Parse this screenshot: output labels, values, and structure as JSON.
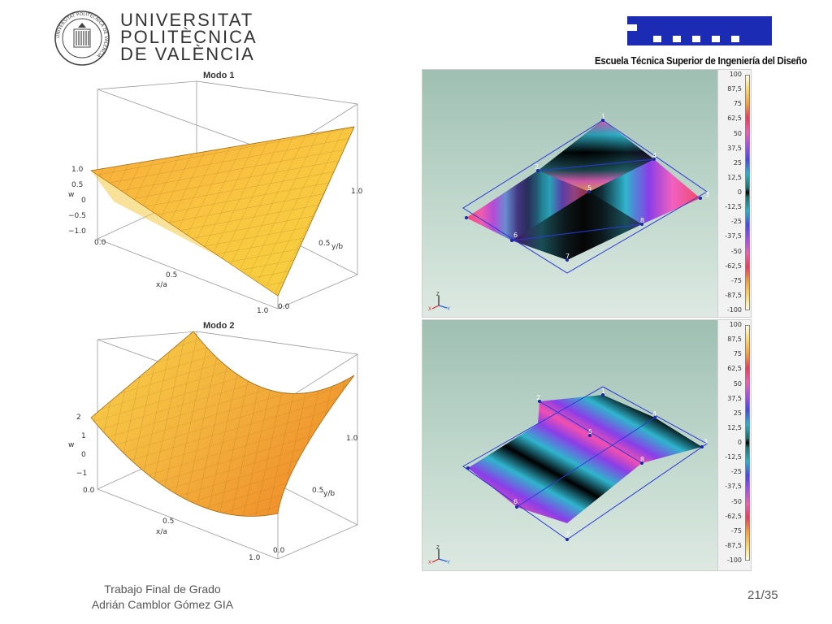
{
  "header": {
    "university_lines": [
      "UNIVERSITAT",
      "POLITÈCNICA",
      "DE VALÈNCIA"
    ],
    "seal_text": "UNIVERSITAT POLITÈCNICA DE VALÈNCIA",
    "school_name": "Escuela Técnica Superior de Ingeniería del Diseño",
    "brand_color": "#1c2bb3"
  },
  "plots": [
    {
      "title": "Modo 1",
      "z_label": "w",
      "z_ticks": [
        "1.0",
        "0.5",
        "0",
        "−0.5",
        "−1.0"
      ],
      "x_label": "x/a",
      "x_ticks": [
        "0.0",
        "0.5",
        "1.0"
      ],
      "y_label": "y/b",
      "y_ticks": [
        "0.0",
        "0.5",
        "1.0"
      ]
    },
    {
      "title": "Modo 2",
      "z_label": "w",
      "z_ticks": [
        "2",
        "1",
        "0",
        "−1"
      ],
      "x_label": "x/a",
      "x_ticks": [
        "0.0",
        "0.5",
        "1.0"
      ],
      "y_label": "y/b",
      "y_ticks": [
        "0.0",
        "0.5",
        "1.0"
      ]
    }
  ],
  "fem": {
    "legend_ticks": [
      "100",
      "87,5",
      "75",
      "62,5",
      "50",
      "37,5",
      "25",
      "12,5",
      "0",
      "-12,5",
      "-25",
      "-37,5",
      "-50",
      "-62,5",
      "-75",
      "-87,5",
      "-100"
    ],
    "nodes_top": [
      "1",
      "2",
      "3",
      "4",
      "5",
      "6",
      "7",
      "8"
    ],
    "nodes_bottom": [
      "1",
      "2",
      "3",
      "4",
      "5",
      "6",
      "7",
      "8"
    ],
    "triad": {
      "z": "Z",
      "x": "X",
      "y": "Y"
    }
  },
  "footer": {
    "line1": "Trabajo Final de Grado",
    "line2": "Adrián Camblor Gómez GIA",
    "page": "21/35"
  }
}
